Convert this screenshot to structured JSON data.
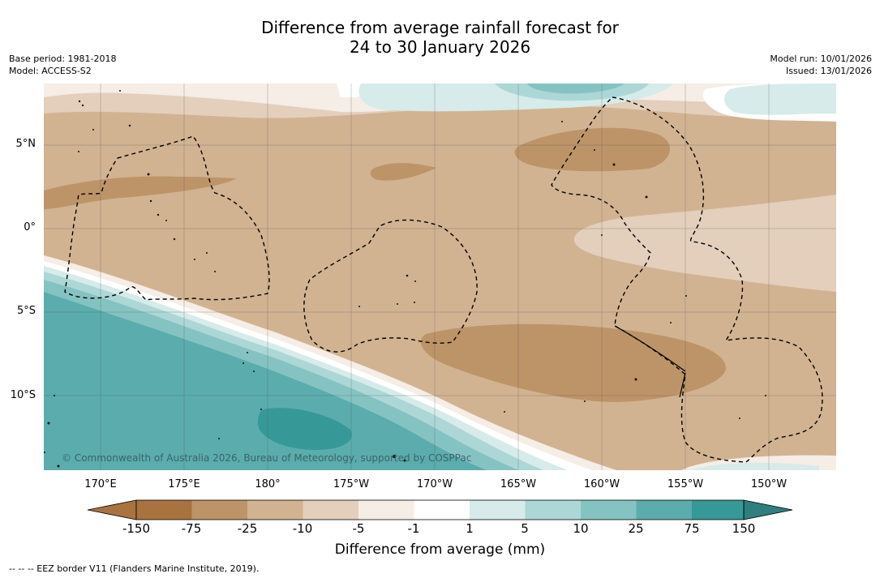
{
  "title": {
    "line1": "Difference from average rainfall forecast for",
    "line2": "24 to 30 January 2026"
  },
  "meta": {
    "base_period": "Base period: 1981-2018",
    "model": "Model: ACCESS-S2",
    "model_run": "Model run: 10/01/2026",
    "issued": "Issued: 13/01/2026"
  },
  "axes": {
    "lat_labels": [
      "5°N",
      "0°",
      "5°S",
      "10°S"
    ],
    "lon_labels": [
      "170°E",
      "175°E",
      "180°",
      "175°W",
      "170°W",
      "165°W",
      "160°W",
      "155°W",
      "150°W"
    ]
  },
  "copyright": "© Commonwealth of Australia 2026, Bureau of Meteorology, supported by COSPPac",
  "colorbar": {
    "labels": [
      "-150",
      "-75",
      "-25",
      "-10",
      "-5",
      "-1",
      "1",
      "5",
      "10",
      "25",
      "75",
      "150"
    ],
    "colors": [
      "#a8733f",
      "#bd9468",
      "#d1b392",
      "#e3cfbc",
      "#f5ede6",
      "#ffffff",
      "#d6ebea",
      "#acd7d6",
      "#85c3c2",
      "#5aadac",
      "#369998",
      "#2e7f7e"
    ],
    "title": "Difference from average (mm)"
  },
  "footer": "--  --  -- EEZ border V11 (Flanders Marine Institute, 2019)."
}
